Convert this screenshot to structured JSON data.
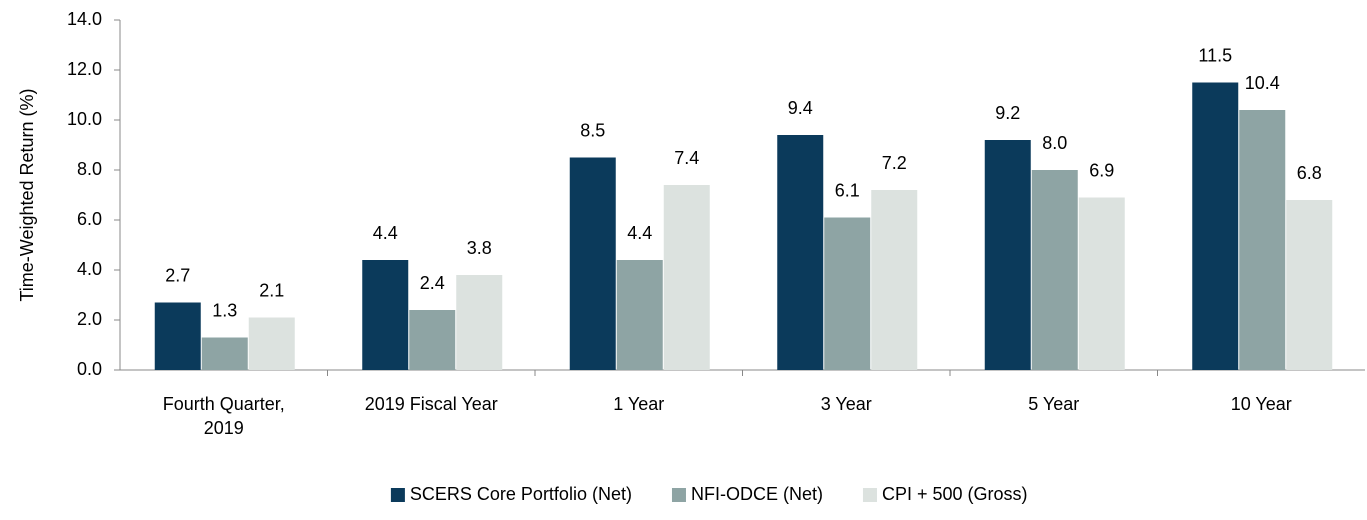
{
  "chart_data": {
    "type": "bar",
    "y_label": "Time-Weighted Return (%)",
    "categories": [
      "Fourth Quarter, 2019",
      "2019 Fiscal Year",
      "1 Year",
      "3 Year",
      "5 Year",
      "10 Year"
    ],
    "series": [
      {
        "name": "SCERS Core Portfolio (Net)",
        "color": "#0b3a5b",
        "values": [
          2.7,
          4.4,
          8.5,
          9.4,
          9.2,
          11.5
        ],
        "value_labels": [
          "2.7",
          "4.4",
          "8.5",
          "9.4",
          "9.2",
          "11.5"
        ]
      },
      {
        "name": "NFI-ODCE (Net)",
        "color": "#8ea4a4",
        "values": [
          1.3,
          2.4,
          4.4,
          6.1,
          8.0,
          10.4
        ],
        "value_labels": [
          "1.3",
          "2.4",
          "4.4",
          "6.1",
          "8.0",
          "10.4"
        ]
      },
      {
        "name": "CPI + 500 (Gross)",
        "color": "#dce2df",
        "values": [
          2.1,
          3.8,
          7.4,
          7.2,
          6.9,
          6.8
        ],
        "value_labels": [
          "2.1",
          "3.8",
          "7.4",
          "7.2",
          "6.9",
          "6.8"
        ]
      }
    ],
    "ylim": [
      0,
      14
    ],
    "yticks": [
      {
        "value": 0,
        "label": "0.0"
      },
      {
        "value": 2,
        "label": "2.0"
      },
      {
        "value": 4,
        "label": "4.0"
      },
      {
        "value": 6,
        "label": "6.0"
      },
      {
        "value": 8,
        "label": "8.0"
      },
      {
        "value": 10,
        "label": "10.0"
      },
      {
        "value": 12,
        "label": "12.0"
      },
      {
        "value": 14,
        "label": "14.0"
      }
    ],
    "grid": false,
    "legend": "bottom"
  }
}
